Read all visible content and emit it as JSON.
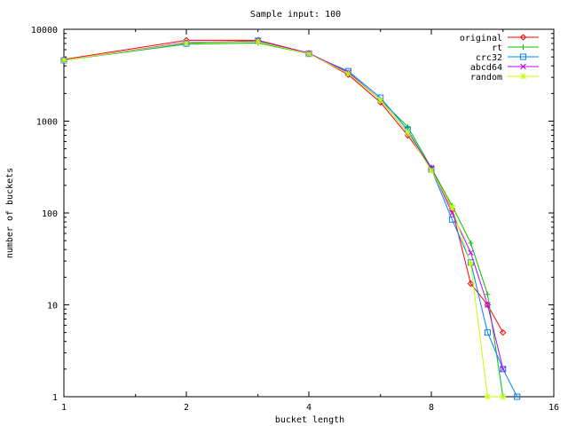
{
  "chart_data": {
    "type": "line",
    "title": "Sample input: 100",
    "xlabel": "bucket length",
    "ylabel": "number of buckets",
    "xscale": "log2",
    "yscale": "log10",
    "xlim": [
      1,
      16
    ],
    "ylim": [
      1,
      10000
    ],
    "xticks": [
      1,
      2,
      4,
      8,
      16
    ],
    "xtick_labels": [
      "1",
      "2",
      "4",
      "8",
      "16"
    ],
    "yticks": [
      1,
      10,
      100,
      1000,
      10000
    ],
    "ytick_labels": [
      "1",
      "10",
      "100",
      "1000",
      "10000"
    ],
    "grid": false,
    "legend_position": "top-right",
    "series": [
      {
        "name": "original",
        "color": "#ff0000",
        "marker": "diamond",
        "points": [
          [
            1,
            4700
          ],
          [
            2,
            7600
          ],
          [
            3,
            7600
          ],
          [
            4,
            5500
          ],
          [
            5,
            3200
          ],
          [
            6,
            1600
          ],
          [
            7,
            700
          ],
          [
            8,
            310
          ],
          [
            9,
            110
          ],
          [
            10,
            17
          ],
          [
            11,
            10
          ],
          [
            12,
            5
          ]
        ]
      },
      {
        "name": "rt",
        "color": "#00c000",
        "marker": "plus",
        "points": [
          [
            1,
            4600
          ],
          [
            2,
            6900
          ],
          [
            3,
            7100
          ],
          [
            4,
            5400
          ],
          [
            5,
            3400
          ],
          [
            6,
            1700
          ],
          [
            7,
            870
          ],
          [
            8,
            310
          ],
          [
            9,
            120
          ],
          [
            10,
            47
          ],
          [
            11,
            13
          ],
          [
            12,
            1
          ]
        ]
      },
      {
        "name": "crc32",
        "color": "#0080ff",
        "marker": "square",
        "points": [
          [
            1,
            4600
          ],
          [
            2,
            7000
          ],
          [
            3,
            7500
          ],
          [
            4,
            5400
          ],
          [
            5,
            3500
          ],
          [
            6,
            1800
          ],
          [
            7,
            800
          ],
          [
            8,
            300
          ],
          [
            9,
            85
          ],
          [
            10,
            29
          ],
          [
            11,
            5
          ],
          [
            12,
            2
          ],
          [
            13,
            1
          ]
        ]
      },
      {
        "name": "abcd64",
        "color": "#c000ff",
        "marker": "cross",
        "points": [
          [
            1,
            4600
          ],
          [
            2,
            7200
          ],
          [
            3,
            7400
          ],
          [
            4,
            5500
          ],
          [
            5,
            3400
          ],
          [
            6,
            1700
          ],
          [
            7,
            750
          ],
          [
            8,
            310
          ],
          [
            9,
            100
          ],
          [
            10,
            37
          ],
          [
            11,
            10
          ],
          [
            12,
            2
          ]
        ]
      },
      {
        "name": "random",
        "color": "#c0ff00",
        "marker": "star",
        "points": [
          [
            1,
            4600
          ],
          [
            2,
            7100
          ],
          [
            3,
            7300
          ],
          [
            4,
            5400
          ],
          [
            5,
            3300
          ],
          [
            6,
            1700
          ],
          [
            7,
            750
          ],
          [
            8,
            290
          ],
          [
            9,
            115
          ],
          [
            10,
            28
          ],
          [
            11,
            1
          ],
          [
            12,
            1
          ]
        ]
      }
    ]
  }
}
